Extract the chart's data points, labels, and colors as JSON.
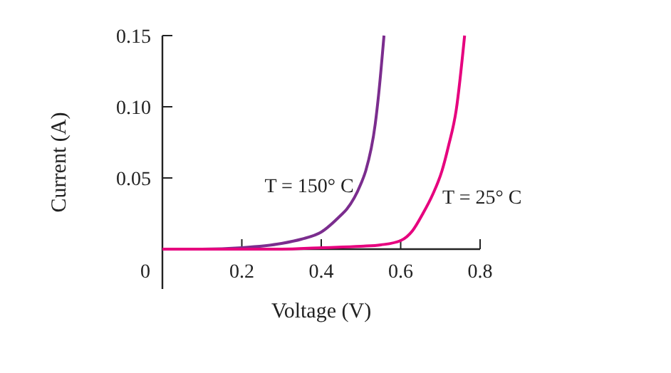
{
  "chart_data": {
    "type": "line",
    "xlabel": "Voltage (V)",
    "ylabel": "Current (A)",
    "xlim": [
      0,
      0.8
    ],
    "ylim": [
      -0.028,
      0.15
    ],
    "xticks": [
      0,
      0.2,
      0.4,
      0.6,
      0.8
    ],
    "yticks": [
      0.05,
      {
        "value": 0.1,
        "label": "0.10"
      },
      0.15
    ],
    "grid": false,
    "marker": "none",
    "line_style": "solid",
    "series": [
      {
        "name": "T = 150° C",
        "color": "#7b2d8e",
        "x": [
          0,
          0.1,
          0.2,
          0.3,
          0.35,
          0.4,
          0.45,
          0.464,
          0.5,
          0.512,
          0.536,
          0.545,
          0.558
        ],
        "values": [
          0,
          0,
          0.001,
          0.004,
          0.007,
          0.012,
          0.024,
          0.028,
          0.046,
          0.055,
          0.088,
          0.11,
          0.15
        ]
      },
      {
        "name": "T = 25° C",
        "color": "#e6007e",
        "x": [
          0,
          0.3,
          0.4,
          0.5,
          0.55,
          0.6,
          0.63,
          0.656,
          0.68,
          0.704,
          0.72,
          0.74,
          0.761
        ],
        "values": [
          0,
          0,
          0.001,
          0.002,
          0.003,
          0.006,
          0.013,
          0.025,
          0.038,
          0.055,
          0.072,
          0.098,
          0.15
        ]
      }
    ]
  }
}
